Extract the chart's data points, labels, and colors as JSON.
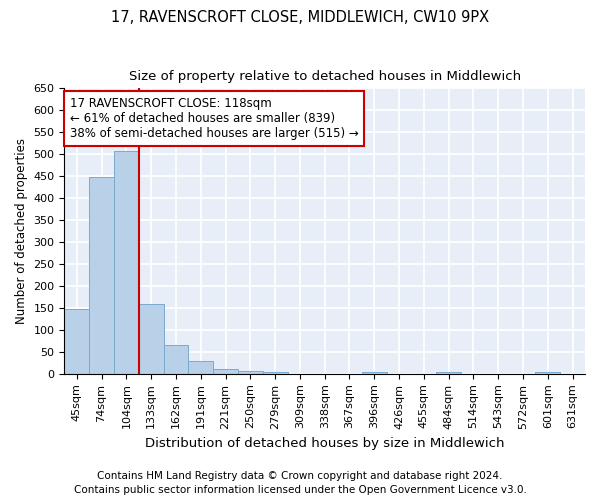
{
  "title1": "17, RAVENSCROFT CLOSE, MIDDLEWICH, CW10 9PX",
  "title2": "Size of property relative to detached houses in Middlewich",
  "xlabel": "Distribution of detached houses by size in Middlewich",
  "ylabel": "Number of detached properties",
  "categories": [
    "45sqm",
    "74sqm",
    "104sqm",
    "133sqm",
    "162sqm",
    "191sqm",
    "221sqm",
    "250sqm",
    "279sqm",
    "309sqm",
    "338sqm",
    "367sqm",
    "396sqm",
    "426sqm",
    "455sqm",
    "484sqm",
    "514sqm",
    "543sqm",
    "572sqm",
    "601sqm",
    "631sqm"
  ],
  "values": [
    148,
    449,
    508,
    158,
    65,
    30,
    12,
    7,
    5,
    0,
    0,
    0,
    5,
    0,
    0,
    5,
    0,
    0,
    0,
    5,
    0
  ],
  "bar_color": "#b8d0e8",
  "bar_edge_color": "#7aaace",
  "bg_color": "#e8eef8",
  "grid_color": "#ffffff",
  "vline_x": 2.5,
  "vline_color": "#cc0000",
  "annotation_text": "17 RAVENSCROFT CLOSE: 118sqm\n← 61% of detached houses are smaller (839)\n38% of semi-detached houses are larger (515) →",
  "annotation_box_color": "#cc0000",
  "ylim": [
    0,
    650
  ],
  "yticks": [
    0,
    50,
    100,
    150,
    200,
    250,
    300,
    350,
    400,
    450,
    500,
    550,
    600,
    650
  ],
  "footer1": "Contains HM Land Registry data © Crown copyright and database right 2024.",
  "footer2": "Contains public sector information licensed under the Open Government Licence v3.0.",
  "title1_fontsize": 10.5,
  "title2_fontsize": 9.5,
  "xlabel_fontsize": 9.5,
  "ylabel_fontsize": 8.5,
  "tick_fontsize": 8,
  "annotation_fontsize": 8.5,
  "footer_fontsize": 7.5
}
